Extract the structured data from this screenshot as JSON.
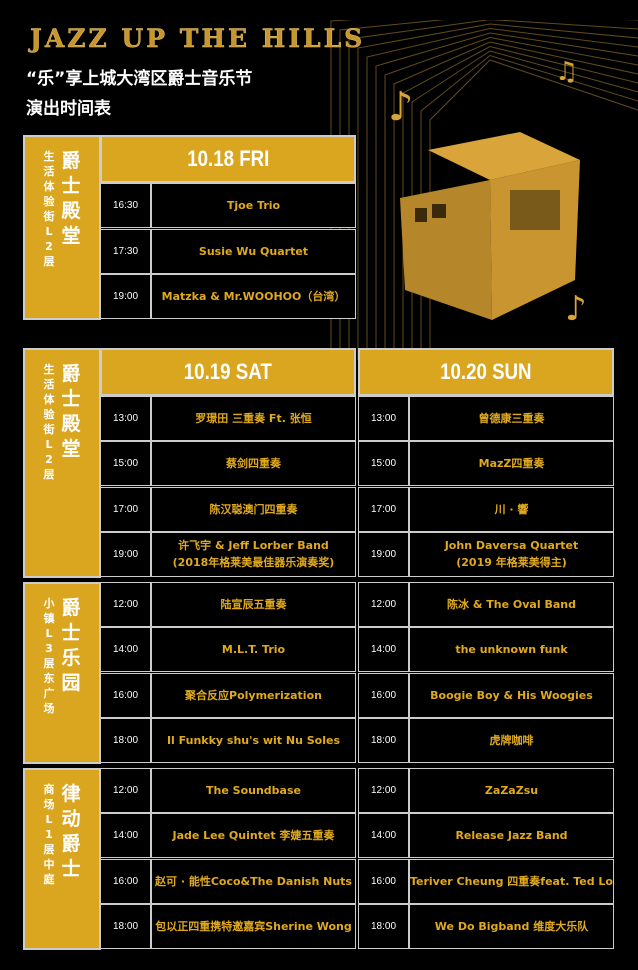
{
  "header": {
    "title": "JAZZ UP THE HILLS",
    "subtitle1": "“乐”享上城大湾区爵士音乐节",
    "subtitle2": "演出时间表"
  },
  "colors": {
    "gold": "#dba61f",
    "act_text": "#e0a91e",
    "border": "#cccccc",
    "background": "#000000"
  },
  "friday": {
    "venue": {
      "name": "爵士殿堂",
      "location": "生活体验街L2层"
    },
    "day": "10.18 FRI",
    "rows": [
      {
        "time": "16:30",
        "act": "Tjoe Trio"
      },
      {
        "time": "17:30",
        "act": "Susie Wu Quartet"
      },
      {
        "time": "19:00",
        "act": "Matzka & Mr.WOOHOO（台湾）"
      }
    ]
  },
  "weekend": {
    "days": [
      "10.19 SAT",
      "10.20 SUN"
    ],
    "venues": [
      {
        "name": "爵士殿堂",
        "location": "生活体验街L2层",
        "sat": [
          {
            "time": "13:00",
            "act": "罗璟田 三重奏  Ft. 张恒"
          },
          {
            "time": "15:00",
            "act": "蔡剑四重奏"
          },
          {
            "time": "17:00",
            "act": "陈汉聪澳门四重奏"
          },
          {
            "time": "19:00",
            "act": "许飞宇 & Jeff Lorber Band",
            "act2": "(2018年格莱美最佳器乐演奏奖)"
          }
        ],
        "sun": [
          {
            "time": "13:00",
            "act": "曾德康三重奏"
          },
          {
            "time": "15:00",
            "act": "MazZ四重奏"
          },
          {
            "time": "17:00",
            "act": "川 · 響"
          },
          {
            "time": "19:00",
            "act": "John Daversa Quartet",
            "act2": "(2019 年格莱美得主)"
          }
        ]
      },
      {
        "name": "爵士乐园",
        "location": "小镇L3层东广场",
        "sat": [
          {
            "time": "12:00",
            "act": "陆宣辰五重奏"
          },
          {
            "time": "14:00",
            "act": "M.L.T. Trio"
          },
          {
            "time": "16:00",
            "act": "聚合反应Polymerization"
          },
          {
            "time": "18:00",
            "act": "Il Funkky shu's wit Nu Soles"
          }
        ],
        "sun": [
          {
            "time": "12:00",
            "act": "陈冰 & The Oval Band"
          },
          {
            "time": "14:00",
            "act": "the unknown funk"
          },
          {
            "time": "16:00",
            "act": "Boogie Boy & His Woogies"
          },
          {
            "time": "18:00",
            "act": "虎牌咖啡"
          }
        ]
      },
      {
        "name": "律动爵士",
        "location": "商场L1层中庭",
        "sat": [
          {
            "time": "12:00",
            "act": "The Soundbase"
          },
          {
            "time": "14:00",
            "act": "Jade Lee Quintet 李婕五重奏"
          },
          {
            "time": "16:00",
            "act": "赵可 · 能性Coco&The Danish Nuts"
          },
          {
            "time": "18:00",
            "act": "包以正四重携特邀嘉宾Sherine Wong"
          }
        ],
        "sun": [
          {
            "time": "12:00",
            "act": "ZaZaZsu"
          },
          {
            "time": "14:00",
            "act": "Release Jazz Band"
          },
          {
            "time": "16:00",
            "act": "Teriver Cheung 四重奏feat. Ted Lo"
          },
          {
            "time": "18:00",
            "act": "We Do Bigband 维度大乐队"
          }
        ]
      }
    ]
  },
  "decor": {
    "icons": [
      "music-note-icon",
      "gold-cube-building-icon"
    ]
  }
}
